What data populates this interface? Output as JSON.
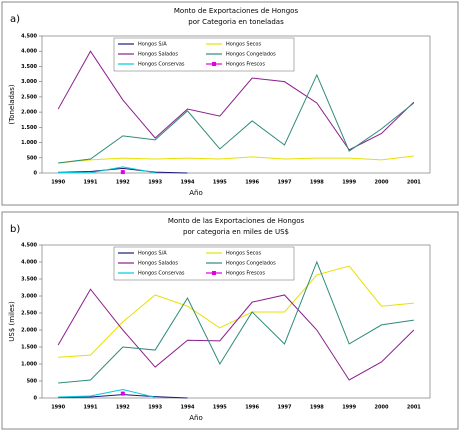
{
  "chart_data": [
    {
      "type": "line",
      "panel": "a)",
      "title": "Monto de Exportaciones de Hongos",
      "subtitle": "por Categoria en toneladas",
      "x_label": "Año",
      "y_label": "(Toneladas)",
      "categories": [
        "1990",
        "1991",
        "1992",
        "1993",
        "1994",
        "1995",
        "1996",
        "1997",
        "1998",
        "1999",
        "2000",
        "2001"
      ],
      "ylim": [
        0,
        4500
      ],
      "yticks": [
        0,
        500,
        {
          "value": 1000,
          "label": "1.000"
        },
        {
          "value": 1500,
          "label": "1.500"
        },
        {
          "value": 2000,
          "label": "2.000"
        },
        {
          "value": 2500,
          "label": "2.500"
        },
        {
          "value": 3000,
          "label": "3.000"
        },
        {
          "value": 3500,
          "label": "3.500"
        },
        {
          "value": 4000,
          "label": "4.000"
        },
        {
          "value": 4500,
          "label": "4.500"
        }
      ],
      "series": [
        {
          "name": "Hongos S/A",
          "color": "#1a1a7a",
          "values": [
            20,
            50,
            150,
            30,
            0,
            null,
            null,
            null,
            null,
            null,
            null,
            null
          ]
        },
        {
          "name": "Hongos Secos",
          "color": "#e8e000",
          "values": [
            330,
            430,
            490,
            460,
            490,
            460,
            530,
            460,
            490,
            490,
            430,
            560
          ]
        },
        {
          "name": "Hongos Salados",
          "color": "#8b1f8b",
          "values": [
            2100,
            4000,
            2400,
            1150,
            2100,
            1870,
            3120,
            3000,
            2300,
            760,
            1300,
            2330
          ]
        },
        {
          "name": "Hongos Congelados",
          "color": "#2e8b7a",
          "values": [
            330,
            460,
            1220,
            1090,
            2040,
            790,
            1710,
            920,
            3220,
            720,
            1450,
            2300
          ]
        },
        {
          "name": "Hongos Conservas",
          "color": "#00c8e0",
          "values": [
            20,
            10,
            200,
            10,
            null,
            null,
            null,
            null,
            null,
            null,
            null,
            null
          ]
        },
        {
          "name": "Hongos Frescos",
          "color": "#e000e0",
          "marker": "square",
          "values": [
            null,
            null,
            30,
            null,
            null,
            null,
            null,
            null,
            null,
            null,
            null,
            null
          ]
        }
      ]
    },
    {
      "type": "line",
      "panel": "b)",
      "title": "Monto de las Exportaciones de Hongos",
      "subtitle": "por categoria en miles de US$",
      "x_label": "Año",
      "y_label": "US$ (miles)",
      "categories": [
        "1990",
        "1991",
        "1992",
        "1993",
        "1994",
        "1995",
        "1996",
        "1997",
        "1998",
        "1999",
        "2000",
        "2001"
      ],
      "ylim": [
        0,
        4500
      ],
      "yticks": [
        0,
        500,
        {
          "value": 1000,
          "label": "1.000"
        },
        {
          "value": 1500,
          "label": "1.500"
        },
        {
          "value": 2000,
          "label": "2.000"
        },
        {
          "value": 2500,
          "label": "2.500"
        },
        {
          "value": 3000,
          "label": "3.000"
        },
        {
          "value": 3500,
          "label": "3.500"
        },
        {
          "value": 4000,
          "label": "4.000"
        },
        {
          "value": 4500,
          "label": "4.500"
        }
      ],
      "series": [
        {
          "name": "Hongos S/A",
          "color": "#1a1a7a",
          "values": [
            20,
            30,
            100,
            40,
            0,
            null,
            null,
            null,
            null,
            null,
            null,
            null
          ]
        },
        {
          "name": "Hongos Secos",
          "color": "#e8e000",
          "values": [
            1200,
            1260,
            2240,
            3030,
            2700,
            2060,
            2530,
            2530,
            3620,
            3880,
            2700,
            2790
          ]
        },
        {
          "name": "Hongos Salados",
          "color": "#8b1f8b",
          "values": [
            1560,
            3200,
            2000,
            910,
            1700,
            1680,
            2820,
            3030,
            2000,
            530,
            1060,
            2000
          ]
        },
        {
          "name": "Hongos Congelados",
          "color": "#2e8b7a",
          "values": [
            440,
            530,
            1500,
            1410,
            2940,
            1000,
            2530,
            1590,
            4000,
            1590,
            2150,
            2290
          ]
        },
        {
          "name": "Hongos Conservas",
          "color": "#00c8e0",
          "values": [
            30,
            60,
            250,
            20,
            null,
            null,
            null,
            null,
            null,
            null,
            null,
            null
          ]
        },
        {
          "name": "Hongos Frescos",
          "color": "#e000e0",
          "marker": "square",
          "values": [
            null,
            null,
            130,
            null,
            null,
            null,
            null,
            null,
            null,
            null,
            null,
            null
          ]
        }
      ]
    }
  ]
}
